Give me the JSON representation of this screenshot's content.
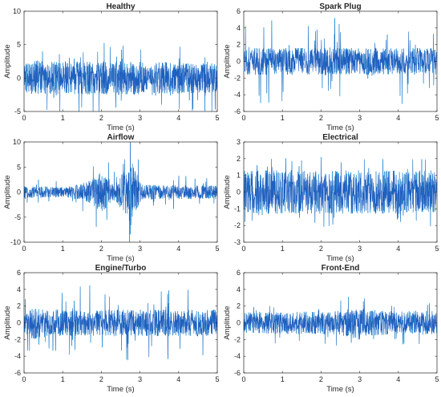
{
  "chart_data": [
    {
      "type": "line",
      "title": "Healthy",
      "xlabel": "Time (s)",
      "ylabel": "Amplitude",
      "xlim": [
        0,
        5
      ],
      "ylim": [
        -5,
        10
      ],
      "xticks": [
        "0",
        "1",
        "2",
        "3",
        "4",
        "5"
      ],
      "yticks": [
        "-5",
        "0",
        "5",
        "10"
      ],
      "signal": {
        "duration_s": 5,
        "base_amplitude": 2.2,
        "spike_amplitude": 5,
        "envelope": [
          [
            0,
            0.9
          ],
          [
            0.3,
            1.2
          ],
          [
            1.5,
            1.1
          ],
          [
            3.0,
            1.2
          ],
          [
            3.25,
            0.7
          ],
          [
            3.4,
            1.1
          ],
          [
            5,
            1.0
          ]
        ]
      },
      "colors": {
        "main": "#1f5fbf",
        "fringe": "#00e5ff"
      }
    },
    {
      "type": "line",
      "title": "Spark Plug",
      "xlabel": "Time (s)",
      "ylabel": "Amplitude",
      "xlim": [
        0,
        5
      ],
      "ylim": [
        -6,
        6
      ],
      "xticks": [
        "0",
        "1",
        "2",
        "3",
        "4",
        "5"
      ],
      "yticks": [
        "-6",
        "-4",
        "-2",
        "0",
        "2",
        "4",
        "6"
      ],
      "signal": {
        "duration_s": 5,
        "base_amplitude": 1.6,
        "spike_amplitude": 5.2,
        "envelope": [
          [
            0,
            1
          ],
          [
            5,
            1
          ]
        ]
      },
      "colors": {
        "main": "#1f5fbf",
        "fringe": "#00e5ff"
      }
    },
    {
      "type": "line",
      "title": "Airflow",
      "xlabel": "Time (s)",
      "ylabel": "Amplitude",
      "xlim": [
        0,
        5
      ],
      "ylim": [
        -10,
        10
      ],
      "xticks": [
        "0",
        "1",
        "2",
        "3",
        "4",
        "5"
      ],
      "yticks": [
        "-10",
        "-5",
        "0",
        "5",
        "10"
      ],
      "signal": {
        "duration_s": 5,
        "base_amplitude": 1.3,
        "spike_amplitude": 3,
        "envelope": [
          [
            0,
            0.9
          ],
          [
            1.0,
            0.8
          ],
          [
            1.5,
            1.3
          ],
          [
            1.8,
            2.0
          ],
          [
            2.0,
            3.2
          ],
          [
            2.2,
            2.0
          ],
          [
            2.4,
            1.6
          ],
          [
            2.6,
            3.5
          ],
          [
            2.75,
            5.5
          ],
          [
            2.9,
            3.0
          ],
          [
            3.1,
            1.2
          ],
          [
            5,
            1.0
          ]
        ]
      },
      "colors": {
        "main": "#1f5fbf",
        "fringe": "#00e5ff"
      }
    },
    {
      "type": "line",
      "title": "Electrical",
      "xlabel": "Time (s)",
      "ylabel": "Amplitude",
      "xlim": [
        0,
        5
      ],
      "ylim": [
        -3,
        3
      ],
      "xticks": [
        "0",
        "1",
        "2",
        "3",
        "4",
        "5"
      ],
      "yticks": [
        "-3",
        "-2",
        "-1",
        "0",
        "1",
        "2",
        "3"
      ],
      "signal": {
        "duration_s": 5,
        "base_amplitude": 1.3,
        "spike_amplitude": 2.1,
        "envelope": [
          [
            0,
            1
          ],
          [
            5,
            1
          ]
        ]
      },
      "colors": {
        "main": "#1f5fbf",
        "fringe": "#00e5ff"
      }
    },
    {
      "type": "line",
      "title": "Engine/Turbo",
      "xlabel": "Time (s)",
      "ylabel": "Amplitude",
      "xlim": [
        0,
        5
      ],
      "ylim": [
        -6,
        6
      ],
      "xticks": [
        "0",
        "1",
        "2",
        "3",
        "4",
        "5"
      ],
      "yticks": [
        "-6",
        "-4",
        "-2",
        "0",
        "2",
        "4",
        "6"
      ],
      "signal": {
        "duration_s": 5,
        "base_amplitude": 1.6,
        "spike_amplitude": 4.6,
        "envelope": [
          [
            0,
            0.7
          ],
          [
            0.15,
            1.0
          ],
          [
            0.25,
            1.4
          ],
          [
            0.4,
            1.0
          ],
          [
            5,
            1.0
          ]
        ]
      },
      "colors": {
        "main": "#1f5fbf",
        "fringe": "#00e5ff"
      }
    },
    {
      "type": "line",
      "title": "Front-End",
      "xlabel": "Time (s)",
      "ylabel": "Amplitude",
      "xlim": [
        0,
        5
      ],
      "ylim": [
        -6,
        6
      ],
      "xticks": [
        "0",
        "1",
        "2",
        "3",
        "4",
        "5"
      ],
      "yticks": [
        "-6",
        "-4",
        "-2",
        "0",
        "2",
        "4",
        "6"
      ],
      "signal": {
        "duration_s": 5,
        "base_amplitude": 1.4,
        "spike_amplitude": 2.8,
        "envelope": [
          [
            0,
            0.9
          ],
          [
            2.4,
            1.0
          ],
          [
            2.8,
            1.3
          ],
          [
            3.0,
            1.5
          ],
          [
            3.2,
            1.1
          ],
          [
            5,
            1.0
          ]
        ]
      },
      "colors": {
        "main": "#1f5fbf",
        "fringe": "#00e5ff"
      }
    }
  ]
}
